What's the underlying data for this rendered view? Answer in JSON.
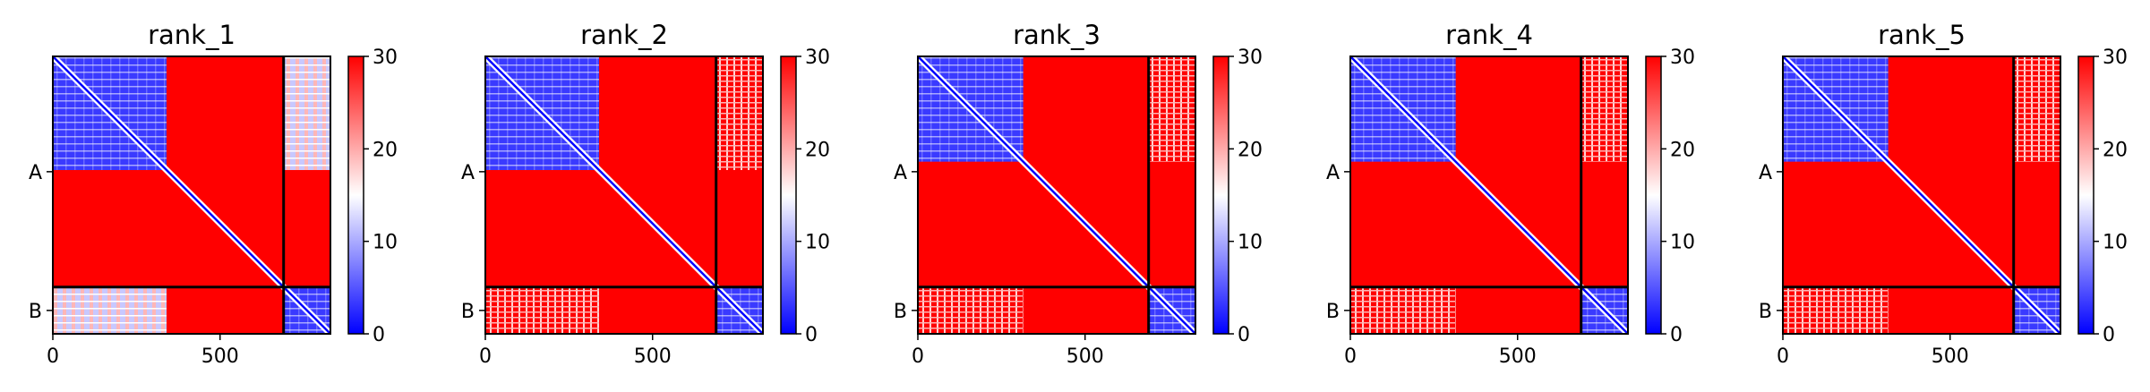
{
  "chart_data": {
    "type": "heatmap",
    "colormap": {
      "low": "#0000ff",
      "mid": "#ffffff",
      "high": "#ff0000"
    },
    "colorbar": {
      "range": [
        0,
        30
      ],
      "ticks": [
        0,
        10,
        20,
        30
      ]
    },
    "xlim": [
      0,
      830
    ],
    "xticks": [
      0,
      500
    ],
    "chain_boundary": 690,
    "chains": [
      "A",
      "B"
    ],
    "panels": [
      {
        "title": "rank_1",
        "blue_block_end": 340,
        "off_diag_blue": true
      },
      {
        "title": "rank_2",
        "blue_block_end": 340,
        "off_diag_blue": false
      },
      {
        "title": "rank_3",
        "blue_block_end": 315,
        "off_diag_blue": false
      },
      {
        "title": "rank_4",
        "blue_block_end": 315,
        "off_diag_blue": false
      },
      {
        "title": "rank_5",
        "blue_block_end": 315,
        "off_diag_blue": false
      }
    ]
  }
}
